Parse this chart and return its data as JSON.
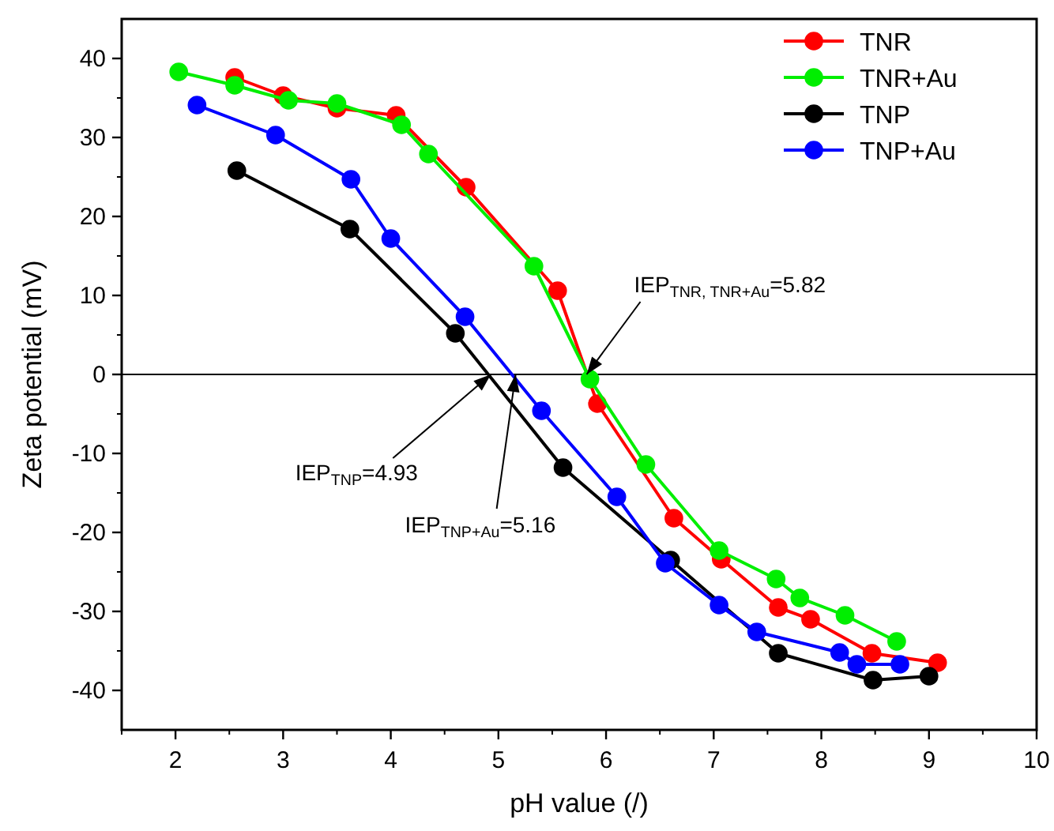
{
  "chart_data": {
    "type": "line",
    "xlabel": "pH value (/)",
    "ylabel": "Zeta potential (mV)",
    "xlim": [
      1.5,
      10
    ],
    "xticks": [
      2,
      3,
      4,
      5,
      6,
      7,
      8,
      9,
      10
    ],
    "ylim": [
      -45,
      45
    ],
    "yticks": [
      -40,
      -30,
      -20,
      -10,
      0,
      10,
      20,
      30,
      40
    ],
    "grid": false,
    "legend": "top right",
    "marker": "circle",
    "line_style": "solid",
    "ref_lines": [
      {
        "axis": "y",
        "value": 0,
        "color": "#000000"
      }
    ],
    "annotations": [
      {
        "text": "IEP$_{TNR, TNR+Au}$=5.82",
        "x": 5.82,
        "y": 0
      },
      {
        "text": "IEP$_{TNP}$=4.93",
        "x": 4.93,
        "y": 0
      },
      {
        "text": "IEP$_{TNP+Au}$=5.16",
        "x": 5.16,
        "y": 0
      }
    ],
    "series": [
      {
        "name": "TNR",
        "color": "#ff0000",
        "x": [
          2.55,
          3.0,
          3.5,
          4.05,
          4.7,
          5.55,
          5.92,
          6.63,
          7.07,
          7.6,
          7.9,
          8.47,
          9.08
        ],
        "values": [
          37.6,
          35.3,
          33.7,
          32.8,
          23.7,
          10.6,
          -3.7,
          -18.2,
          -23.4,
          -29.5,
          -31,
          -35.3,
          -36.5
        ]
      },
      {
        "name": "TNR+Au",
        "color": "#00ee00",
        "x": [
          2.03,
          2.55,
          3.05,
          3.5,
          4.1,
          4.35,
          5.33,
          5.85,
          6.37,
          7.05,
          7.58,
          7.8,
          8.22,
          8.7
        ],
        "values": [
          38.3,
          36.6,
          34.7,
          34.3,
          31.6,
          27.9,
          13.7,
          -0.6,
          -11.4,
          -22.3,
          -25.9,
          -28.3,
          -30.5,
          -33.8
        ]
      },
      {
        "name": "TNP",
        "color": "#000000",
        "x": [
          2.57,
          3.62,
          4.6,
          5.6,
          6.6,
          7.6,
          8.48,
          9.0
        ],
        "values": [
          25.8,
          18.4,
          5.2,
          -11.8,
          -23.5,
          -35.3,
          -38.7,
          -38.2
        ]
      },
      {
        "name": "TNP+Au",
        "color": "#0000ff",
        "x": [
          2.2,
          2.93,
          3.63,
          4.0,
          4.69,
          5.4,
          6.1,
          6.55,
          7.05,
          7.4,
          8.17,
          8.33,
          8.73
        ],
        "values": [
          34.1,
          30.3,
          24.7,
          17.2,
          7.3,
          -4.6,
          -15.5,
          -23.9,
          -29.2,
          -32.6,
          -35.2,
          -36.7,
          -36.7
        ]
      }
    ]
  }
}
